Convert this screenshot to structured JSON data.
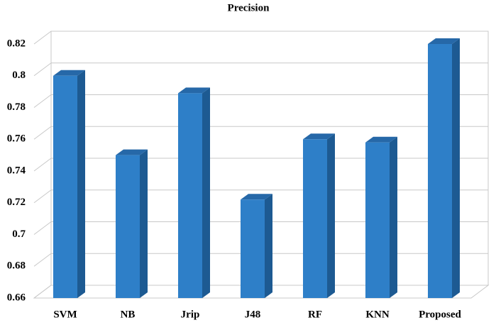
{
  "chart_data": {
    "type": "bar",
    "title": "Precision",
    "categories": [
      "SVM",
      "NB",
      "Jrip",
      "J48",
      "RF",
      "KNN",
      "Proposed"
    ],
    "values": [
      0.8,
      0.75,
      0.789,
      0.722,
      0.76,
      0.758,
      0.82
    ],
    "color": "#2e7fc8",
    "ylim": [
      0.66,
      0.82
    ],
    "yticks": [
      0.66,
      0.68,
      0.7,
      0.72,
      0.74,
      0.76,
      0.78,
      0.8,
      0.82
    ],
    "grid": true
  }
}
